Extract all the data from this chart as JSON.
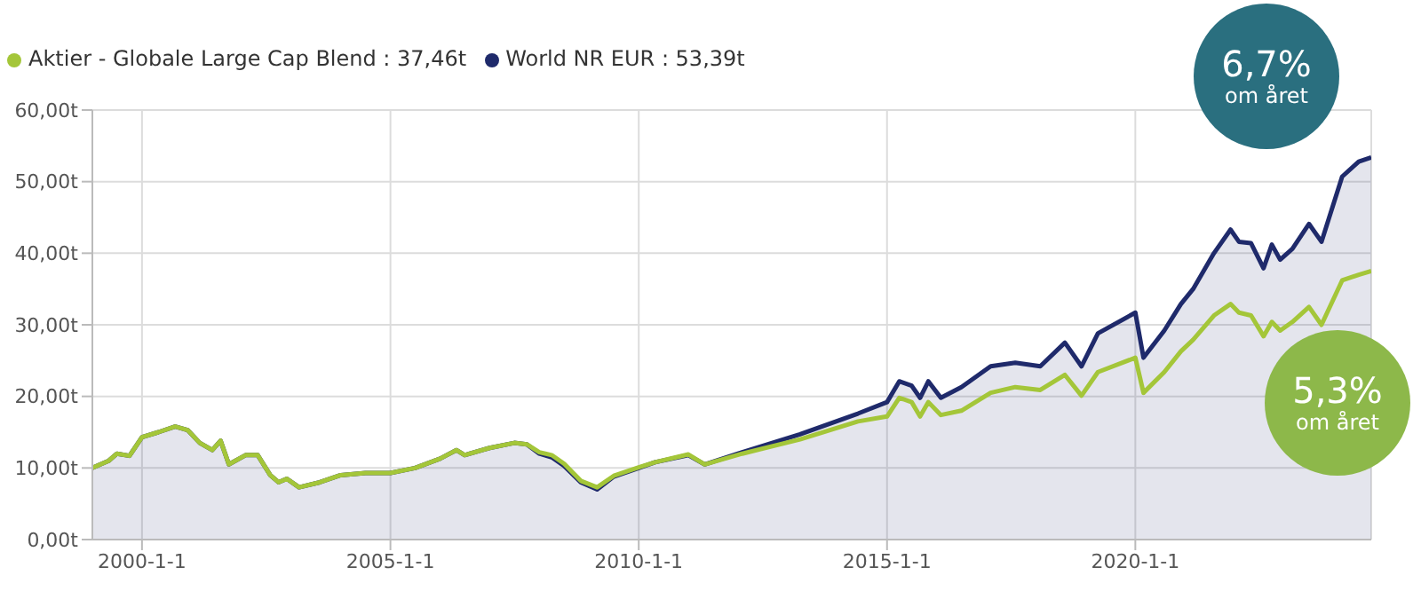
{
  "chart_data": {
    "type": "line",
    "x": [
      "1999-01",
      "1999-05",
      "1999-07",
      "1999-10",
      "2000-01",
      "2000-05",
      "2000-09",
      "2000-12",
      "2001-03",
      "2001-06",
      "2001-08",
      "2001-10",
      "2002-02",
      "2002-05",
      "2002-08",
      "2002-10",
      "2002-12",
      "2003-03",
      "2003-08",
      "2004-01",
      "2004-07",
      "2005-01",
      "2005-07",
      "2006-01",
      "2006-05",
      "2006-07",
      "2007-01",
      "2007-07",
      "2007-10",
      "2008-01",
      "2008-04",
      "2008-07",
      "2008-11",
      "2009-03",
      "2009-07",
      "2010-01",
      "2010-05",
      "2011-01",
      "2011-05",
      "2012-02",
      "2013-04",
      "2014-06",
      "2015-01",
      "2015-04",
      "2015-07",
      "2015-09",
      "2015-11",
      "2016-02",
      "2016-07",
      "2017-02",
      "2017-08",
      "2018-02",
      "2018-08",
      "2018-12",
      "2019-04",
      "2020-01",
      "2020-03",
      "2020-08",
      "2020-12",
      "2021-03",
      "2021-08",
      "2021-12",
      "2022-02",
      "2022-05",
      "2022-08",
      "2022-10",
      "2022-12",
      "2023-03",
      "2023-07",
      "2023-10",
      "2024-03",
      "2024-07",
      "2024-10"
    ],
    "series": [
      {
        "name": "World NR EUR : 53,39t",
        "type": "area",
        "color": "#1f2a6b",
        "values": [
          10.0,
          11.0,
          12.0,
          11.7,
          14.3,
          15.0,
          15.8,
          15.3,
          13.5,
          12.5,
          13.8,
          10.5,
          11.8,
          11.8,
          9.0,
          8.0,
          8.5,
          7.3,
          8.0,
          9.0,
          9.3,
          9.3,
          10.0,
          11.3,
          12.5,
          11.8,
          12.8,
          13.5,
          13.3,
          12.0,
          11.5,
          10.3,
          8.0,
          7.0,
          8.8,
          10.0,
          10.8,
          11.8,
          10.5,
          12.2,
          14.7,
          17.6,
          19.2,
          22.1,
          21.5,
          19.8,
          22.1,
          19.8,
          21.3,
          24.2,
          24.7,
          24.2,
          27.5,
          24.2,
          28.8,
          31.7,
          25.4,
          29.2,
          32.9,
          35.0,
          40.0,
          43.3,
          41.6,
          41.4,
          37.9,
          41.2,
          39.1,
          40.6,
          44.1,
          41.6,
          50.7,
          52.8,
          53.4
        ]
      },
      {
        "name": "Aktier - Globale Large Cap Blend : 37,46t",
        "color": "#a4c639",
        "values": [
          10.0,
          11.0,
          12.0,
          11.7,
          14.3,
          15.0,
          15.8,
          15.3,
          13.5,
          12.5,
          13.8,
          10.5,
          11.8,
          11.8,
          9.0,
          8.0,
          8.5,
          7.3,
          8.0,
          9.0,
          9.3,
          9.3,
          10.0,
          11.3,
          12.5,
          11.8,
          12.8,
          13.5,
          13.3,
          12.2,
          11.8,
          10.6,
          8.2,
          7.3,
          8.9,
          10.1,
          10.8,
          11.9,
          10.5,
          12.0,
          14.0,
          16.5,
          17.2,
          19.8,
          19.2,
          17.2,
          19.2,
          17.4,
          18.0,
          20.5,
          21.3,
          20.9,
          23.0,
          20.1,
          23.4,
          25.4,
          20.5,
          23.4,
          26.3,
          27.9,
          31.3,
          32.9,
          31.7,
          31.3,
          28.4,
          30.4,
          29.2,
          30.4,
          32.5,
          30.0,
          36.2,
          37.0,
          37.5
        ]
      }
    ],
    "xlim": [
      "1999-01",
      "2024-10"
    ],
    "xticks": [
      {
        "value": "2000-01-01",
        "label": "2000-1-1"
      },
      {
        "value": "2005-01-01",
        "label": "2005-1-1"
      },
      {
        "value": "2010-01-01",
        "label": "2010-1-1"
      },
      {
        "value": "2015-01-01",
        "label": "2015-1-1"
      },
      {
        "value": "2020-01-01",
        "label": "2020-1-1"
      }
    ],
    "ylim": [
      0,
      60
    ],
    "yticks": [
      {
        "value": 0,
        "label": "0,00t"
      },
      {
        "value": 10,
        "label": "10,00t"
      },
      {
        "value": 20,
        "label": "20,00t"
      },
      {
        "value": 30,
        "label": "30,00t"
      },
      {
        "value": 40,
        "label": "40,00t"
      },
      {
        "value": 50,
        "label": "50,00t"
      },
      {
        "value": 60,
        "label": "60,00t"
      }
    ],
    "grid": true,
    "legend": "top left",
    "marker": "none",
    "line_style": "solid",
    "annotations": [
      "6,7% om året",
      "5,3% om året"
    ]
  }
}
